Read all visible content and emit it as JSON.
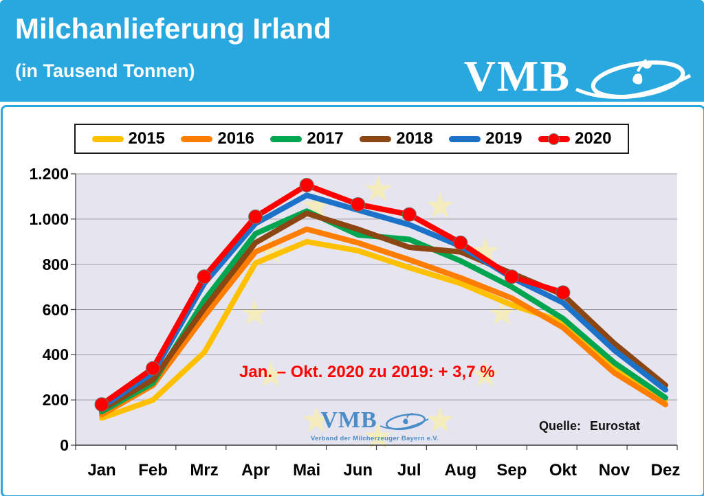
{
  "header": {
    "title": "Milchanlieferung Irland",
    "subtitle": "(in Tausend Tonnen)",
    "logo_text": "VMB",
    "accent_color": "#29A8DF"
  },
  "watermark": {
    "logo_text": "VMB",
    "caption": "Verband der Milcherzeuger Bayern e.V."
  },
  "annotation": "Jan. – Okt. 2020 zu 2019: + 3,7 %",
  "source": {
    "label": "Quelle:",
    "value": "Eurostat"
  },
  "chart_data": {
    "type": "line",
    "title": "Milchanlieferung Irland (in Tausend Tonnen)",
    "categories": [
      "Jan",
      "Feb",
      "Mrz",
      "Apr",
      "Mai",
      "Jun",
      "Jul",
      "Aug",
      "Sep",
      "Okt",
      "Nov",
      "Dez"
    ],
    "ylim": [
      0,
      1200
    ],
    "grid": true,
    "legend_position": "top",
    "plot_bg": "#E6E5EF",
    "gridline_color": "#9B9BA5",
    "star_color": "#F4ECBC",
    "y_ticks": [
      {
        "label": "1.200",
        "value": 1200
      },
      {
        "label": "1.000",
        "value": 1000
      },
      {
        "label": "800",
        "value": 800
      },
      {
        "label": "600",
        "value": 600
      },
      {
        "label": "400",
        "value": 400
      },
      {
        "label": "200",
        "value": 200
      },
      {
        "label": "0",
        "value": 0
      }
    ],
    "series": [
      {
        "name": "2015",
        "color": "#FFC000",
        "marker": false,
        "values": [
          120,
          200,
          410,
          805,
          900,
          860,
          785,
          715,
          620,
          545,
          345,
          200
        ]
      },
      {
        "name": "2016",
        "color": "#FF7D00",
        "marker": false,
        "values": [
          135,
          265,
          570,
          855,
          955,
          895,
          820,
          740,
          650,
          520,
          320,
          180
        ]
      },
      {
        "name": "2017",
        "color": "#00A550",
        "marker": false,
        "values": [
          148,
          275,
          640,
          935,
          1035,
          930,
          910,
          815,
          700,
          560,
          365,
          210
        ]
      },
      {
        "name": "2018",
        "color": "#8C4613",
        "marker": false,
        "values": [
          158,
          290,
          605,
          895,
          1025,
          955,
          875,
          855,
          760,
          665,
          450,
          265
        ]
      },
      {
        "name": "2019",
        "color": "#1C72C8",
        "marker": false,
        "values": [
          168,
          320,
          715,
          980,
          1105,
          1040,
          975,
          880,
          740,
          630,
          420,
          245
        ]
      },
      {
        "name": "2020",
        "color": "#FF0000",
        "marker": true,
        "values": [
          180,
          340,
          745,
          1010,
          1150,
          1065,
          1020,
          895,
          745,
          675
        ]
      }
    ]
  }
}
